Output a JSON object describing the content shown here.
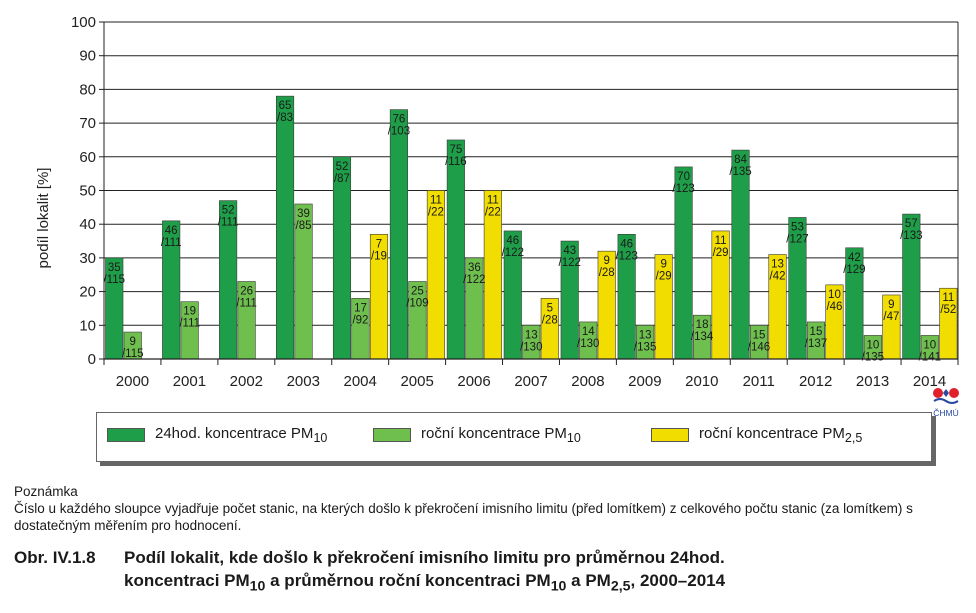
{
  "chart_data": {
    "type": "bar",
    "ylabel": "podíl lokalit [%]",
    "ylim": [
      0,
      100
    ],
    "yticks": [
      0,
      10,
      20,
      30,
      40,
      50,
      60,
      70,
      80,
      90,
      100
    ],
    "grid": true,
    "legend_position": "bottom",
    "categories": [
      "2000",
      "2001",
      "2002",
      "2003",
      "2004",
      "2005",
      "2006",
      "2007",
      "2008",
      "2009",
      "2010",
      "2011",
      "2012",
      "2013",
      "2014"
    ],
    "series": [
      {
        "name": "24hod. koncentrace PM10",
        "color": "#1f9e49",
        "values": [
          30,
          41,
          47,
          78,
          60,
          74,
          65,
          38,
          35,
          37,
          57,
          62,
          42,
          33,
          43
        ],
        "labels": [
          [
            "35",
            "/115"
          ],
          [
            "46",
            "/111"
          ],
          [
            "52",
            "/111"
          ],
          [
            "65",
            "/83"
          ],
          [
            "52",
            "/87"
          ],
          [
            "76",
            "/103"
          ],
          [
            "75",
            "/116"
          ],
          [
            "46",
            "/122"
          ],
          [
            "43",
            "/122"
          ],
          [
            "46",
            "/123"
          ],
          [
            "70",
            "/123"
          ],
          [
            "84",
            "/135"
          ],
          [
            "53",
            "/127"
          ],
          [
            "42",
            "/129"
          ],
          [
            "57",
            "/133"
          ]
        ]
      },
      {
        "name": "roční koncentrace PM10",
        "color": "#6fbf4f",
        "values": [
          8,
          17,
          23,
          46,
          18,
          23,
          30,
          10,
          11,
          10,
          13,
          10,
          11,
          7,
          7
        ],
        "labels": [
          [
            "9",
            "/115"
          ],
          [
            "19",
            "/111"
          ],
          [
            "26",
            "/111"
          ],
          [
            "39",
            "/85"
          ],
          [
            "17",
            "/92"
          ],
          [
            "25",
            "/109"
          ],
          [
            "36",
            "/122"
          ],
          [
            "13",
            "/130"
          ],
          [
            "14",
            "/130"
          ],
          [
            "13",
            "/135"
          ],
          [
            "18",
            "/134"
          ],
          [
            "15",
            "/146"
          ],
          [
            "15",
            "/137"
          ],
          [
            "10",
            "/135"
          ],
          [
            "10",
            "/141"
          ]
        ]
      },
      {
        "name": "roční koncentrace PM2,5",
        "color": "#f2dd00",
        "values": [
          null,
          null,
          null,
          null,
          37,
          50,
          50,
          18,
          32,
          31,
          38,
          31,
          22,
          19,
          21
        ],
        "labels": [
          null,
          null,
          null,
          null,
          [
            "7",
            "/19"
          ],
          [
            "11",
            "/22"
          ],
          [
            "11",
            "/22"
          ],
          [
            "5",
            "/28"
          ],
          [
            "9",
            "/28"
          ],
          [
            "9",
            "/29"
          ],
          [
            "11",
            "/29"
          ],
          [
            "13",
            "/42"
          ],
          [
            "10",
            "/46"
          ],
          [
            "9",
            "/47"
          ],
          [
            "11",
            "/52"
          ]
        ]
      }
    ]
  },
  "legend": {
    "item1_text": "24hod. koncentrace PM",
    "item1_sub": "10",
    "item2_text": "roční koncentrace PM",
    "item2_sub": "10",
    "item3_text": "roční koncentrace PM",
    "item3_sub": "2,5"
  },
  "note": {
    "title": "Poznámka",
    "text": "Číslo u každého sloupce vyjadřuje počet stanic, na kterých došlo k překročení imisního limitu (před lomítkem) z celkového počtu stanic (za lomítkem) s dostatečným měřením pro hodnocení."
  },
  "caption": {
    "number": "Obr. IV.1.8",
    "line1": "Podíl lokalit, kde došlo k překročení imisního limitu pro průměrnou 24hod.",
    "line2_a": "koncentraci PM",
    "line2_sub1": "10",
    "line2_b": " a průměrnou roční koncentraci PM",
    "line2_sub2": "10",
    "line2_c": " a PM",
    "line2_sub3": "2,5",
    "line2_d": ", 2000–2014"
  },
  "logo": {
    "text": "ČHMÚ",
    "icon": "chmu-logo-icon"
  }
}
